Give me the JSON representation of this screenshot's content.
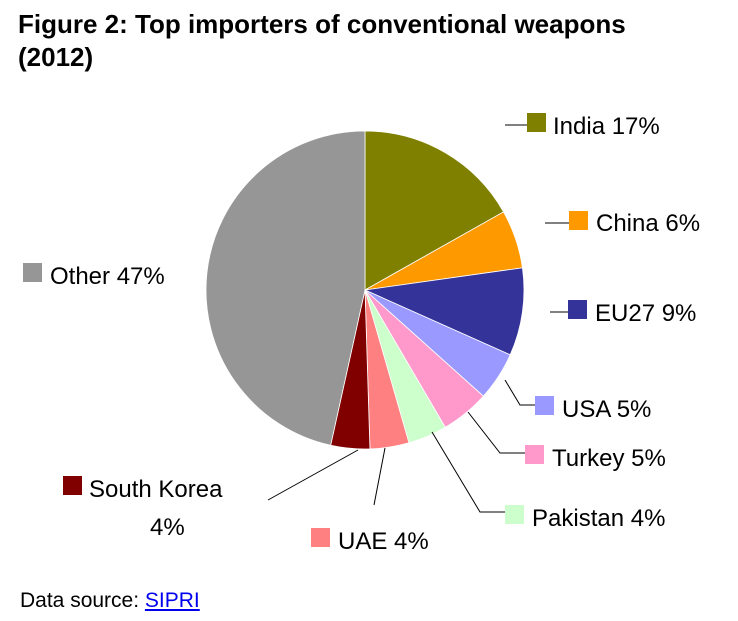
{
  "figure": {
    "title": "Figure 2: Top importers of conventional weapons",
    "title_year": "(2012)"
  },
  "chart_data": {
    "type": "pie",
    "title": "Figure 2: Top importers of conventional weapons (2012)",
    "start": "12 o'clock",
    "direction": "clockwise",
    "legend_placement": "outside labels with leader lines",
    "slices": [
      {
        "label": "India",
        "value": 17,
        "value_label": "17%",
        "color": "#808000",
        "text": "India 17%"
      },
      {
        "label": "China",
        "value": 6,
        "value_label": "6%",
        "color": "#ff9900",
        "text": "China 6%"
      },
      {
        "label": "EU27",
        "value": 9,
        "value_label": "9%",
        "color": "#333399",
        "text": "EU27 9%"
      },
      {
        "label": "USA",
        "value": 5,
        "value_label": "5%",
        "color": "#9999ff",
        "text": "USA 5%"
      },
      {
        "label": "Turkey",
        "value": 5,
        "value_label": "5%",
        "color": "#ff99cc",
        "text": "Turkey 5%"
      },
      {
        "label": "Pakistan",
        "value": 4,
        "value_label": "4%",
        "color": "#ccffcc",
        "text": "Pakistan 4%"
      },
      {
        "label": "UAE",
        "value": 4,
        "value_label": "4%",
        "color": "#ff8080",
        "text": "UAE 4%"
      },
      {
        "label": "South Korea",
        "value": 4,
        "value_label": "4%",
        "color": "#800000",
        "text": "South Korea",
        "text2": "4%"
      },
      {
        "label": "Other",
        "value": 47,
        "value_label": "47%",
        "color": "#969696",
        "text": "Other 47%"
      }
    ]
  },
  "source": {
    "prefix": "Data source: ",
    "link_text": "SIPRI"
  }
}
